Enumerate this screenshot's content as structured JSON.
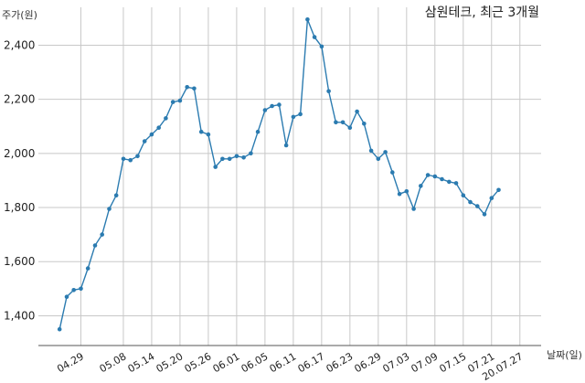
{
  "chart_data": {
    "type": "line",
    "title": "삼원테크, 최근 3개월",
    "ylabel": "주가(원)",
    "xlabel": "날짜(일)",
    "ylim": [
      1290,
      2540
    ],
    "yticks": [
      1400,
      1600,
      1800,
      2000,
      2200,
      2400
    ],
    "ytick_labels": [
      "1,400",
      "1,600",
      "1,800",
      "2,000",
      "2,200",
      "2,400"
    ],
    "grid": true,
    "color": "#2b7bb0",
    "x_tick_labels": [
      "04.29",
      "05.08",
      "05.14",
      "05.20",
      "05.26",
      "06.01",
      "06.05",
      "06.11",
      "06.17",
      "06.23",
      "06.29",
      "07.03",
      "07.09",
      "07.15",
      "07.21",
      "20.07.27"
    ],
    "x_tick_positions": [
      3,
      9,
      13,
      17,
      21,
      25,
      29,
      33,
      37,
      41,
      45,
      49,
      53,
      57,
      61,
      65
    ],
    "x_range": [
      -3,
      68
    ],
    "values": [
      1350,
      1470,
      1495,
      1500,
      1575,
      1660,
      1700,
      1795,
      1845,
      1980,
      1975,
      1990,
      2045,
      2070,
      2095,
      2130,
      2190,
      2195,
      2245,
      2240,
      2080,
      2070,
      1950,
      1980,
      1980,
      1990,
      1985,
      2000,
      2080,
      2160,
      2175,
      2180,
      2030,
      2135,
      2145,
      2495,
      2430,
      2395,
      2230,
      2115,
      2115,
      2095,
      2155,
      2110,
      2010,
      1980,
      2005,
      1930,
      1850,
      1860,
      1795,
      1880,
      1920,
      1915,
      1905,
      1895,
      1890,
      1845,
      1820,
      1805,
      1775,
      1835,
      1865
    ]
  }
}
